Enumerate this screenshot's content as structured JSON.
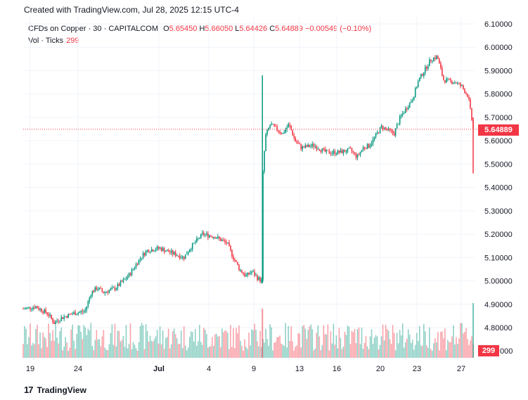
{
  "header": {
    "created": "Created with TradingView.com, Jul 28, 2025 12:15 UTC-4"
  },
  "legend": {
    "symbol": "CFDs on Copper · 30 · CAPITALCOM",
    "open_label": "O",
    "open": "5.65450",
    "high_label": "H",
    "high": "5.66050",
    "low_label": "L",
    "low": "5.64426",
    "close_label": "C",
    "close": "5.64889",
    "change": "−0.00549 (−0.10%)",
    "vol_label": "Vol · Ticks",
    "vol_value": "299"
  },
  "footer": {
    "brand": "TradingView",
    "brand_mark": "17"
  },
  "colors": {
    "up": "#089981",
    "down": "#f23645",
    "grid": "#f0f3fa",
    "axis_text": "#131722"
  },
  "chart_data": {
    "type": "candlestick",
    "price_axis": {
      "ticks": [
        "6.10000",
        "6.00000",
        "5.90000",
        "5.80000",
        "5.70000",
        "5.60000",
        "5.50000",
        "5.40000",
        "5.30000",
        "5.20000",
        "5.10000",
        "5.00000",
        "4.90000",
        "4.80000"
      ],
      "range": [
        4.8,
        6.1
      ]
    },
    "last_price": "5.64889",
    "last_volume": "299",
    "volume_axis_label": "000",
    "x_axis_ticks": [
      "19",
      "24",
      "Jul",
      "4",
      "9",
      "13",
      "16",
      "20",
      "23",
      "27"
    ],
    "price_path": [
      [
        0,
        4.88
      ],
      [
        2,
        4.89
      ],
      [
        4,
        4.86
      ],
      [
        5,
        4.82
      ],
      [
        6,
        4.84
      ],
      [
        8,
        4.86
      ],
      [
        10,
        4.87
      ],
      [
        11,
        4.95
      ],
      [
        12,
        4.97
      ],
      [
        13,
        4.95
      ],
      [
        15,
        4.97
      ],
      [
        17,
        5.02
      ],
      [
        19,
        5.1
      ],
      [
        20,
        5.13
      ],
      [
        22,
        5.14
      ],
      [
        24,
        5.12
      ],
      [
        26,
        5.1
      ],
      [
        27,
        5.14
      ],
      [
        29,
        5.2
      ],
      [
        31,
        5.19
      ],
      [
        33,
        5.16
      ],
      [
        34,
        5.1
      ],
      [
        35,
        5.05
      ],
      [
        36,
        5.02
      ],
      [
        37,
        5.04
      ],
      [
        38,
        5.01
      ],
      [
        38.6,
        5.0
      ],
      [
        38.8,
        5.47
      ],
      [
        39.2,
        5.62
      ],
      [
        40,
        5.67
      ],
      [
        42,
        5.63
      ],
      [
        43,
        5.67
      ],
      [
        44,
        5.6
      ],
      [
        45,
        5.57
      ],
      [
        47,
        5.58
      ],
      [
        49,
        5.55
      ],
      [
        51,
        5.55
      ],
      [
        53,
        5.56
      ],
      [
        54,
        5.53
      ],
      [
        55,
        5.57
      ],
      [
        56,
        5.58
      ],
      [
        58,
        5.66
      ],
      [
        60,
        5.63
      ],
      [
        61,
        5.7
      ],
      [
        63,
        5.78
      ],
      [
        64,
        5.86
      ],
      [
        66,
        5.95
      ],
      [
        67,
        5.96
      ],
      [
        68,
        5.86
      ],
      [
        70,
        5.85
      ],
      [
        71,
        5.83
      ],
      [
        72,
        5.79
      ],
      [
        72.8,
        5.64889
      ]
    ],
    "volume_spikes": [
      [
        38.7,
        299,
        "up"
      ],
      [
        72.8,
        299,
        "down"
      ]
    ]
  }
}
